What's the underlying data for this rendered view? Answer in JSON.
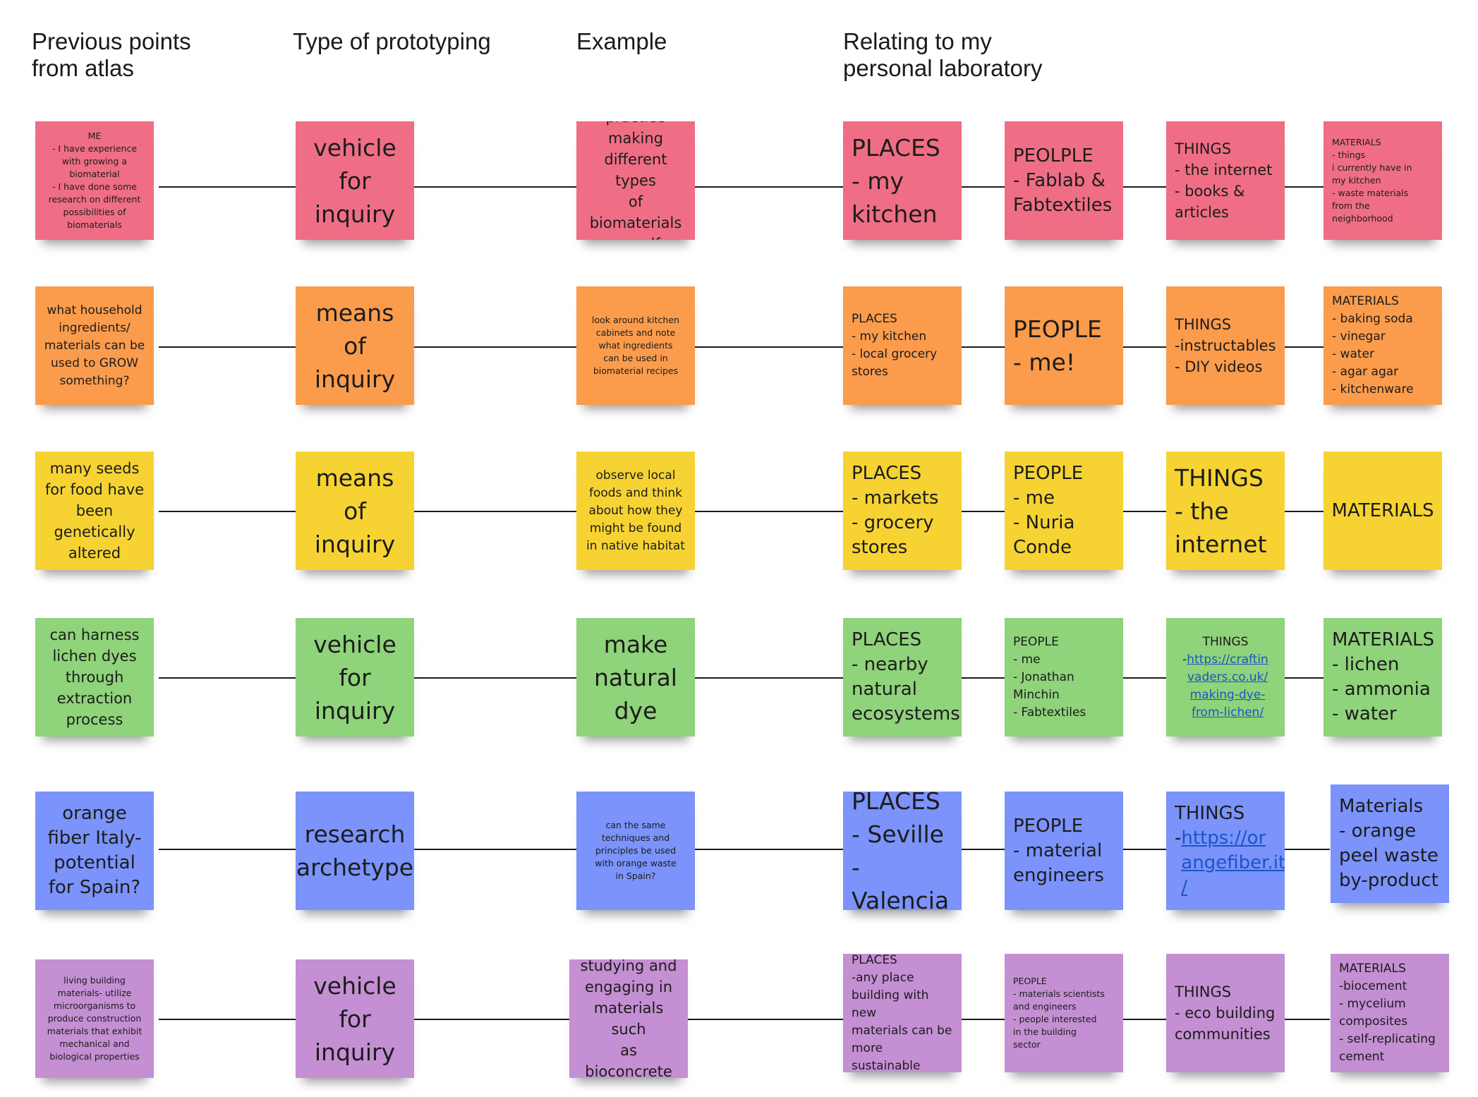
{
  "headers": {
    "previous": "Previous points\nfrom atlas",
    "type": "Type of prototyping",
    "example": "Example",
    "relating": "Relating to my\npersonal laboratory"
  },
  "rows": [
    {
      "color": "#ef6e85",
      "previous": "ME\n- I have experience with growing a biomaterial\n- I have done some research on different possibilities of biomaterials",
      "type": "vehicle\nfor\ninquiry",
      "example": "practice\nmaking\ndifferent types\nof biomaterials\nmyself",
      "places": "PLACES\n- my\nkitchen",
      "people": "PEOLPLE\n- Fablab &\nFabtextiles",
      "things": "THINGS\n- the internet\n- books &\narticles",
      "materials": "MATERIALS\n- things\ni currently have in\nmy kitchen\n- waste materials\nfrom the\nneighborhood"
    },
    {
      "color": "#fb9c4c",
      "previous": "what household\ningredients/\nmaterials can be\nused to GROW\nsomething?",
      "type": "means\nof\ninquiry",
      "example": "look around kitchen\ncabinets and note\nwhat ingredients\ncan be used in\nbiomaterial recipes",
      "places": "PLACES\n- my kitchen\n- local grocery\nstores",
      "people": "PEOPLE\n- me!",
      "things": "THINGS\n-instructables\n- DIY videos",
      "materials": "MATERIALS\n- baking soda\n- vinegar\n- water\n- agar agar\n- kitchenware"
    },
    {
      "color": "#f6d332",
      "previous": "many seeds\nfor food have\nbeen\ngenetically\naltered",
      "type": "means\nof\ninquiry",
      "example": "observe local\nfoods and think\nabout how they\nmight be found\nin native habitat",
      "places": "PLACES\n- markets\n- grocery\nstores",
      "people": "PEOPLE\n- me\n- Nuria\nConde",
      "things": "THINGS\n- the\ninternet",
      "materials": "MATERIALS"
    },
    {
      "color": "#8fd37a",
      "previous": "can harness\nlichen dyes\nthrough\nextraction\nprocess",
      "type": "vehicle\nfor\ninquiry",
      "example": "make\nnatural\ndye",
      "places": "PLACES\n- nearby\nnatural\necosystems",
      "people": "PEOPLE\n- me\n- Jonathan\nMinchin\n- Fabtextiles",
      "things_title": "THINGS",
      "things_dash": "- ",
      "things_link": "https://craftin\nvaders.co.uk/\nmaking-dye-\nfrom-lichen/",
      "materials": "MATERIALS\n- lichen\n- ammonia\n- water"
    },
    {
      "color": "#7b93fa",
      "previous": "orange\nfiber Italy-\npotential\nfor Spain?",
      "type": "research\narchetype",
      "example": "can the same\ntechniques and\nprinciples be used\nwith orange waste\nin Spain?",
      "places": "PLACES\n- Seville\n- Valencia",
      "people": "PEOPLE\n- material\nengineers",
      "things_title": "THINGS",
      "things_dash": "- ",
      "things_link": "https://or\nangefiber.it\n/",
      "materials": "Materials\n- orange\npeel waste\nby-product"
    },
    {
      "color": "#c48fd3",
      "previous": "living building\nmaterials- utilize\nmicroorganisms to\nproduce construction\nmaterials that exhibit\nmechanical and\nbiological properties",
      "type": "vehicle\nfor\ninquiry",
      "example": "studying and\nengaging in\nmaterials such\nas bioconcrete",
      "places": "PLACES\n-any place\nbuilding with new\nmaterials can be\nmore sustainable",
      "people": "PEOPLE\n- materials scientists\nand engineers\n- people interested\nin the building\nsector",
      "things": "THINGS\n- eco building\ncommunities",
      "materials": "MATERIALS\n-biocement\n- mycelium\ncomposites\n- self-replicating\ncement"
    }
  ]
}
